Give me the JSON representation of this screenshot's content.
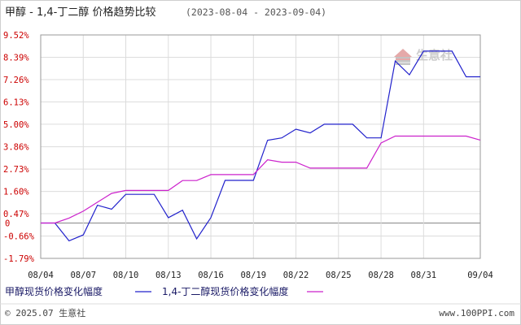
{
  "chart_data": {
    "type": "line",
    "title": "甲醇 - 1,4-丁二醇 价格趋势比较",
    "date_range": "(2023-08-04 - 2023-09-04)",
    "y_ticks": [
      "9.52%",
      "8.39%",
      "7.26%",
      "6.13%",
      "5.00%",
      "3.86%",
      "2.73%",
      "1.60%",
      "0.47%",
      "0",
      "-0.66%",
      "-1.79%"
    ],
    "y_tick_values": [
      9.52,
      8.39,
      7.26,
      6.13,
      5.0,
      3.86,
      2.73,
      1.6,
      0.47,
      0,
      -0.66,
      -1.79
    ],
    "ylim": [
      -1.79,
      9.52
    ],
    "x_ticks": [
      "08/04",
      "08/07",
      "08/10",
      "08/13",
      "08/16",
      "08/19",
      "08/22",
      "08/25",
      "08/28",
      "08/31",
      "09/04"
    ],
    "x_tick_days": [
      0,
      3,
      6,
      9,
      12,
      15,
      18,
      21,
      24,
      27,
      31
    ],
    "grid": true,
    "legend_position": "bottom-left",
    "series": [
      {
        "name": "甲醇现货价格变化幅度",
        "color": "#2222cc",
        "x": [
          0,
          1,
          2,
          3,
          4,
          5,
          6,
          7,
          8,
          9,
          10,
          11,
          12,
          13,
          14,
          15,
          16,
          17,
          18,
          19,
          20,
          21,
          22,
          23,
          24,
          25,
          26,
          27,
          28,
          29,
          30,
          31
        ],
        "y": [
          0,
          0,
          -0.9,
          -0.6,
          0.9,
          0.7,
          1.45,
          1.45,
          1.45,
          0.27,
          0.65,
          -0.8,
          0.27,
          2.16,
          2.16,
          2.16,
          4.19,
          4.31,
          4.75,
          4.56,
          5.0,
          5.0,
          5.0,
          4.31,
          4.31,
          8.2,
          7.5,
          8.7,
          8.7,
          8.7,
          7.4,
          7.4
        ]
      },
      {
        "name": "1,4-丁二醇现货价格变化幅度",
        "color": "#cc22cc",
        "x": [
          0,
          1,
          2,
          3,
          4,
          5,
          6,
          7,
          8,
          9,
          10,
          11,
          12,
          13,
          14,
          15,
          16,
          17,
          18,
          19,
          20,
          21,
          22,
          23,
          24,
          25,
          26,
          27,
          28,
          29,
          30,
          31
        ],
        "y": [
          0,
          0,
          0.25,
          0.6,
          1.05,
          1.5,
          1.65,
          1.65,
          1.65,
          1.65,
          2.15,
          2.15,
          2.45,
          2.45,
          2.45,
          2.45,
          3.2,
          3.08,
          3.08,
          2.78,
          2.78,
          2.78,
          2.78,
          2.78,
          4.05,
          4.4,
          4.4,
          4.4,
          4.4,
          4.4,
          4.4,
          4.2
        ]
      }
    ]
  },
  "legend": [
    {
      "label": "甲醇现货价格变化幅度",
      "color": "#2222cc"
    },
    {
      "label": "1,4-丁二醇现货价格变化幅度",
      "color": "#cc22cc"
    }
  ],
  "watermark": {
    "text": "生意社"
  },
  "footer": {
    "copyright": "© 2025.07 生意社",
    "url": "www.100PPI.com"
  }
}
